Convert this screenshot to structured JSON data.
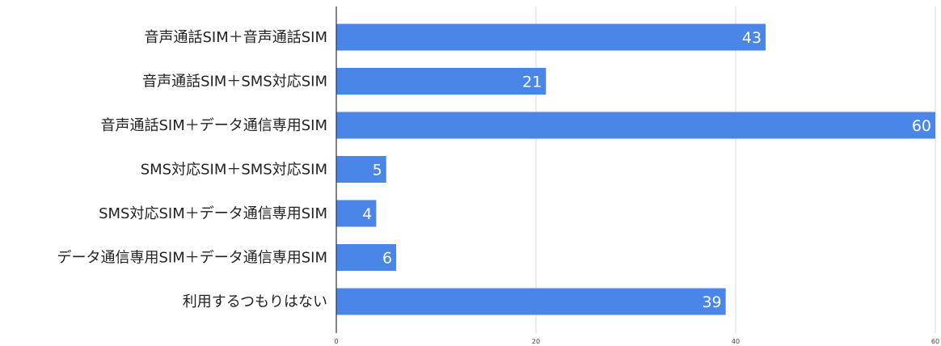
{
  "chart_data": {
    "type": "bar",
    "orientation": "horizontal",
    "categories": [
      "音声通話SIM＋音声通話SIM",
      "音声通話SIM＋SMS対応SIM",
      "音声通話SIM＋データ通信専用SIM",
      "SMS対応SIM＋SMS対応SIM",
      "SMS対応SIM＋データ通信専用SIM",
      "データ通信専用SIM＋データ通信専用SIM",
      "利用するつもりはない"
    ],
    "values": [
      43,
      21,
      60,
      5,
      4,
      6,
      39
    ],
    "title": "",
    "xlabel": "",
    "ylabel": "",
    "xlim": [
      0,
      60
    ],
    "x_ticks": [
      0,
      20,
      40,
      60
    ],
    "grid": true,
    "data_labels": true,
    "legend": "none",
    "colors": {
      "bar": "#4a86e8",
      "grid": "#d9d9d9",
      "axis": "#333333",
      "label": "#222222",
      "value_label": "#ffffff"
    }
  }
}
